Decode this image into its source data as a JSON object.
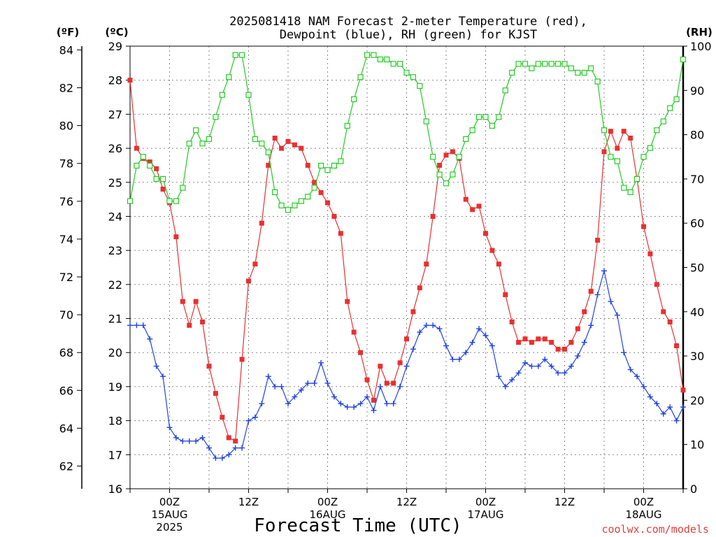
{
  "chart_data": {
    "type": "line",
    "title_line1": "2025081418 NAM Forecast 2-meter Temperature (red),",
    "title_line2": "Dewpoint (blue), RH (green) for KJST",
    "xlabel": "Forecast Time (UTC)",
    "credit": "coolwx.com/models",
    "units": {
      "fahrenheit": "(ºF)",
      "celsius": "(ºC)",
      "rh": "(RH)"
    },
    "x_range_hours": [
      0,
      84
    ],
    "x_ticks": [
      {
        "hour": 6,
        "l1": "00Z",
        "l2": "15AUG",
        "l3": "2025"
      },
      {
        "hour": 18,
        "l1": "12Z",
        "l2": "",
        "l3": ""
      },
      {
        "hour": 30,
        "l1": "00Z",
        "l2": "16AUG",
        "l3": ""
      },
      {
        "hour": 42,
        "l1": "12Z",
        "l2": "",
        "l3": ""
      },
      {
        "hour": 54,
        "l1": "00Z",
        "l2": "17AUG",
        "l3": ""
      },
      {
        "hour": 66,
        "l1": "12Z",
        "l2": "",
        "l3": ""
      },
      {
        "hour": 78,
        "l1": "00Z",
        "l2": "18AUG",
        "l3": ""
      }
    ],
    "celsius_range": [
      16,
      29
    ],
    "celsius_ticks": [
      "16",
      "17",
      "18",
      "19",
      "20",
      "21",
      "22",
      "23",
      "24",
      "25",
      "26",
      "27",
      "28",
      "29"
    ],
    "fahrenheit_ticks": [
      "62",
      "64",
      "66",
      "68",
      "70",
      "72",
      "74",
      "76",
      "78",
      "80",
      "82",
      "84"
    ],
    "rh_range": [
      0,
      100
    ],
    "rh_ticks": [
      "0",
      "10",
      "20",
      "30",
      "40",
      "50",
      "60",
      "70",
      "80",
      "90",
      "100"
    ],
    "colors": {
      "temperature": "#e83030",
      "dewpoint": "#2244dd",
      "rh": "#22cc22",
      "grid": "#888888"
    },
    "x": [
      0,
      1,
      2,
      3,
      4,
      5,
      6,
      7,
      8,
      9,
      10,
      11,
      12,
      13,
      14,
      15,
      16,
      17,
      18,
      19,
      20,
      21,
      22,
      23,
      24,
      25,
      26,
      27,
      28,
      29,
      30,
      31,
      32,
      33,
      34,
      35,
      36,
      37,
      38,
      39,
      40,
      41,
      42,
      43,
      44,
      45,
      46,
      47,
      48,
      49,
      50,
      51,
      52,
      53,
      54,
      55,
      56,
      57,
      58,
      59,
      60,
      61,
      62,
      63,
      64,
      65,
      66,
      67,
      68,
      69,
      70,
      71,
      72,
      73,
      74,
      75,
      76,
      77,
      78,
      79,
      80,
      81,
      82,
      83,
      84
    ],
    "series": [
      {
        "name": "Temperature",
        "unit": "°C",
        "marker": "square-filled",
        "values": [
          28.0,
          26.0,
          25.7,
          25.6,
          25.4,
          24.8,
          24.4,
          23.4,
          21.5,
          20.8,
          21.5,
          20.9,
          19.6,
          18.8,
          18.1,
          17.5,
          17.4,
          19.8,
          22.1,
          22.6,
          23.8,
          25.5,
          26.3,
          26.0,
          26.2,
          26.1,
          26.0,
          25.5,
          25.0,
          24.7,
          24.4,
          24.0,
          23.5,
          21.5,
          20.6,
          20.0,
          19.2,
          18.6,
          19.6,
          19.1,
          19.1,
          19.7,
          20.4,
          21.2,
          21.9,
          22.6,
          24.0,
          25.5,
          25.8,
          25.9,
          25.7,
          24.5,
          24.2,
          24.3,
          23.5,
          23.0,
          22.6,
          21.7,
          20.9,
          20.3,
          20.4,
          20.3,
          20.4,
          20.4,
          20.3,
          20.1,
          20.1,
          20.3,
          20.7,
          21.2,
          21.8,
          23.3,
          25.9,
          26.5,
          26.0,
          26.5,
          26.3,
          25.1,
          23.7,
          22.9,
          22.0,
          21.2,
          20.9,
          20.2,
          18.9
        ]
      },
      {
        "name": "Dewpoint",
        "unit": "°C",
        "marker": "plus",
        "values": [
          20.8,
          20.8,
          20.8,
          20.4,
          19.6,
          19.3,
          17.8,
          17.5,
          17.4,
          17.4,
          17.4,
          17.5,
          17.2,
          16.9,
          16.9,
          17.0,
          17.2,
          17.2,
          18.0,
          18.1,
          18.5,
          19.3,
          19.0,
          19.0,
          18.5,
          18.7,
          18.9,
          19.1,
          19.1,
          19.7,
          19.1,
          18.7,
          18.5,
          18.4,
          18.4,
          18.5,
          18.7,
          18.3,
          19.0,
          18.5,
          18.5,
          19.0,
          19.6,
          20.1,
          20.6,
          20.8,
          20.8,
          20.7,
          20.2,
          19.8,
          19.8,
          20.0,
          20.3,
          20.7,
          20.5,
          20.2,
          19.3,
          19.0,
          19.2,
          19.4,
          19.7,
          19.6,
          19.6,
          19.8,
          19.6,
          19.4,
          19.4,
          19.6,
          19.9,
          20.3,
          20.8,
          21.7,
          22.4,
          21.5,
          21.1,
          20.0,
          19.5,
          19.3,
          19.0,
          18.7,
          18.5,
          18.2,
          18.4,
          18.0,
          18.4
        ]
      },
      {
        "name": "RH",
        "unit": "%",
        "marker": "square-open",
        "values": [
          65,
          73,
          75,
          73,
          70,
          70,
          65,
          65,
          68,
          78,
          81,
          78,
          79,
          84,
          89,
          93,
          98,
          98,
          89,
          79,
          78,
          76,
          67,
          64,
          63,
          64,
          65,
          66,
          68,
          73,
          72,
          73,
          74,
          82,
          88,
          93,
          98,
          98,
          97,
          97,
          96,
          96,
          94,
          93,
          91,
          83,
          75,
          71,
          69,
          71,
          75,
          79,
          81,
          84,
          84,
          82,
          84,
          90,
          94,
          96,
          96,
          95,
          96,
          96,
          96,
          96,
          96,
          95,
          94,
          94,
          95,
          92,
          81,
          75,
          74,
          68,
          67,
          70,
          75,
          77,
          81,
          83,
          86,
          88,
          97
        ]
      }
    ]
  }
}
